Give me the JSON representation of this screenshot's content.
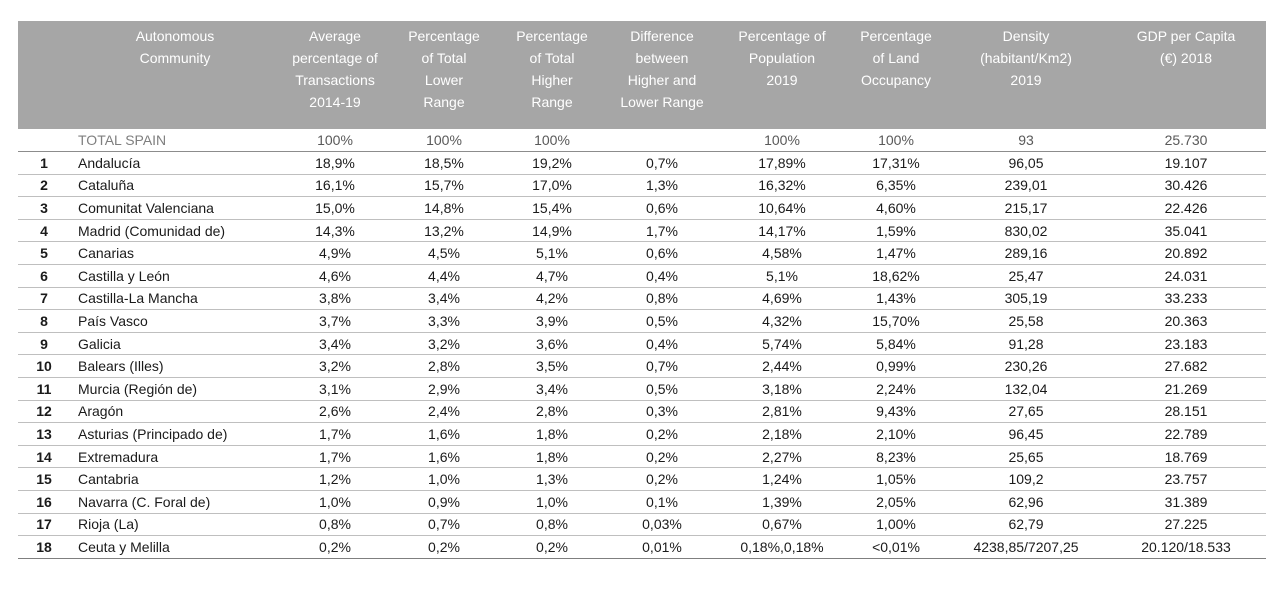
{
  "headers": [
    "",
    "Autonomous\nCommunity",
    "Average\npercentage of\nTransactions\n2014-19",
    "Percentage\nof Total\nLower\nRange",
    "Percentage\nof Total\nHigher\nRange",
    "Difference\nbetween\nHigher and\nLower Range",
    "Percentage of\nPopulation\n2019",
    "Percentage\nof Land\nOccupancy",
    "Density\n(habitant/Km2)\n2019",
    "GDP per Capita\n(€) 2018"
  ],
  "total": [
    "",
    "TOTAL SPAIN",
    "100%",
    "100%",
    "100%",
    "",
    "100%",
    "100%",
    "93",
    "25.730"
  ],
  "rows": [
    [
      "1",
      "Andalucía",
      "18,9%",
      "18,5%",
      "19,2%",
      "0,7%",
      "17,89%",
      "17,31%",
      "96,05",
      "19.107"
    ],
    [
      "2",
      "Cataluña",
      "16,1%",
      "15,7%",
      "17,0%",
      "1,3%",
      "16,32%",
      "6,35%",
      "239,01",
      "30.426"
    ],
    [
      "3",
      "Comunitat Valenciana",
      "15,0%",
      "14,8%",
      "15,4%",
      "0,6%",
      "10,64%",
      "4,60%",
      "215,17",
      "22.426"
    ],
    [
      "4",
      "Madrid (Comunidad de)",
      "14,3%",
      "13,2%",
      "14,9%",
      "1,7%",
      "14,17%",
      "1,59%",
      "830,02",
      "35.041"
    ],
    [
      "5",
      "Canarias",
      "4,9%",
      "4,5%",
      "5,1%",
      "0,6%",
      "4,58%",
      "1,47%",
      "289,16",
      "20.892"
    ],
    [
      "6",
      "Castilla y León",
      "4,6%",
      "4,4%",
      "4,7%",
      "0,4%",
      "5,1%",
      "18,62%",
      "25,47",
      "24.031"
    ],
    [
      "7",
      "Castilla-La Mancha",
      "3,8%",
      "3,4%",
      "4,2%",
      "0,8%",
      "4,69%",
      "1,43%",
      "305,19",
      "33.233"
    ],
    [
      "8",
      "País Vasco",
      "3,7%",
      "3,3%",
      "3,9%",
      "0,5%",
      "4,32%",
      "15,70%",
      "25,58",
      "20.363"
    ],
    [
      "9",
      "Galicia",
      "3,4%",
      "3,2%",
      "3,6%",
      "0,4%",
      "5,74%",
      "5,84%",
      "91,28",
      "23.183"
    ],
    [
      "10",
      "Balears (Illes)",
      "3,2%",
      "2,8%",
      "3,5%",
      "0,7%",
      "2,44%",
      "0,99%",
      "230,26",
      "27.682"
    ],
    [
      "11",
      "Murcia (Región de)",
      "3,1%",
      "2,9%",
      "3,4%",
      "0,5%",
      "3,18%",
      "2,24%",
      "132,04",
      "21.269"
    ],
    [
      "12",
      "Aragón",
      "2,6%",
      "2,4%",
      "2,8%",
      "0,3%",
      "2,81%",
      "9,43%",
      "27,65",
      "28.151"
    ],
    [
      "13",
      "Asturias (Principado de)",
      "1,7%",
      "1,6%",
      "1,8%",
      "0,2%",
      "2,18%",
      "2,10%",
      "96,45",
      "22.789"
    ],
    [
      "14",
      "Extremadura",
      "1,7%",
      "1,6%",
      "1,8%",
      "0,2%",
      "2,27%",
      "8,23%",
      "25,65",
      "18.769"
    ],
    [
      "15",
      "Cantabria",
      "1,2%",
      "1,0%",
      "1,3%",
      "0,2%",
      "1,24%",
      "1,05%",
      "109,2",
      "23.757"
    ],
    [
      "16",
      "Navarra (C. Foral de)",
      "1,0%",
      "0,9%",
      "1,0%",
      "0,1%",
      "1,39%",
      "2,05%",
      "62,96",
      "31.389"
    ],
    [
      "17",
      "Rioja (La)",
      "0,8%",
      "0,7%",
      "0,8%",
      "0,03%",
      "0,67%",
      "1,00%",
      "62,79",
      "27.225"
    ],
    [
      "18",
      "Ceuta y Melilla",
      "0,2%",
      "0,2%",
      "0,2%",
      "0,01%",
      "0,18%,0,18%",
      "<0,01%",
      "4238,85/7207,25",
      "20.120/18.533"
    ]
  ]
}
